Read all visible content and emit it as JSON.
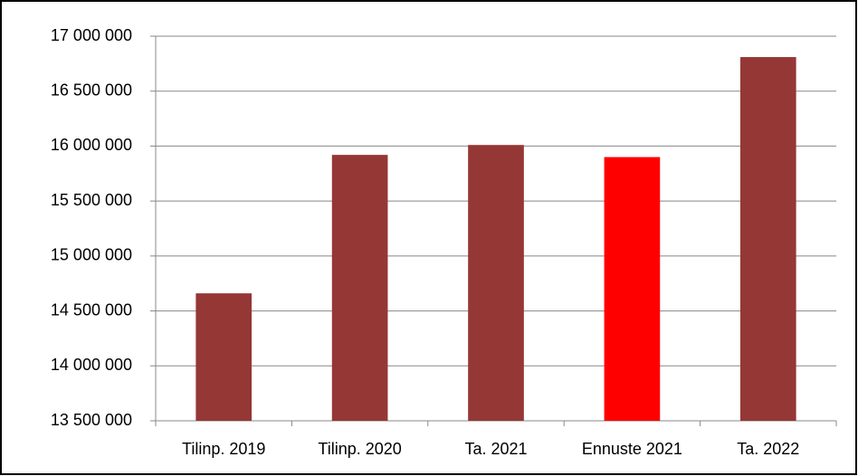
{
  "chart_data": {
    "type": "bar",
    "categories": [
      "Tilinp. 2019",
      "Tilinp. 2020",
      "Ta. 2021",
      "Ennuste 2021",
      "Ta. 2022"
    ],
    "values": [
      14660000,
      15920000,
      16010000,
      15900000,
      16810000
    ],
    "colors": [
      "#953735",
      "#953735",
      "#953735",
      "#ff0000",
      "#953735"
    ],
    "ylim": [
      13500000,
      17000000
    ],
    "yticks": [
      {
        "value": 13500000,
        "label": "13 500 000"
      },
      {
        "value": 14000000,
        "label": "14 000 000"
      },
      {
        "value": 14500000,
        "label": "14 500 000"
      },
      {
        "value": 15000000,
        "label": "15 000 000"
      },
      {
        "value": 15500000,
        "label": "15 500 000"
      },
      {
        "value": 16000000,
        "label": "16 000 000"
      },
      {
        "value": 16500000,
        "label": "16 500 000"
      },
      {
        "value": 17000000,
        "label": "17 000 000"
      }
    ],
    "grid": true
  }
}
